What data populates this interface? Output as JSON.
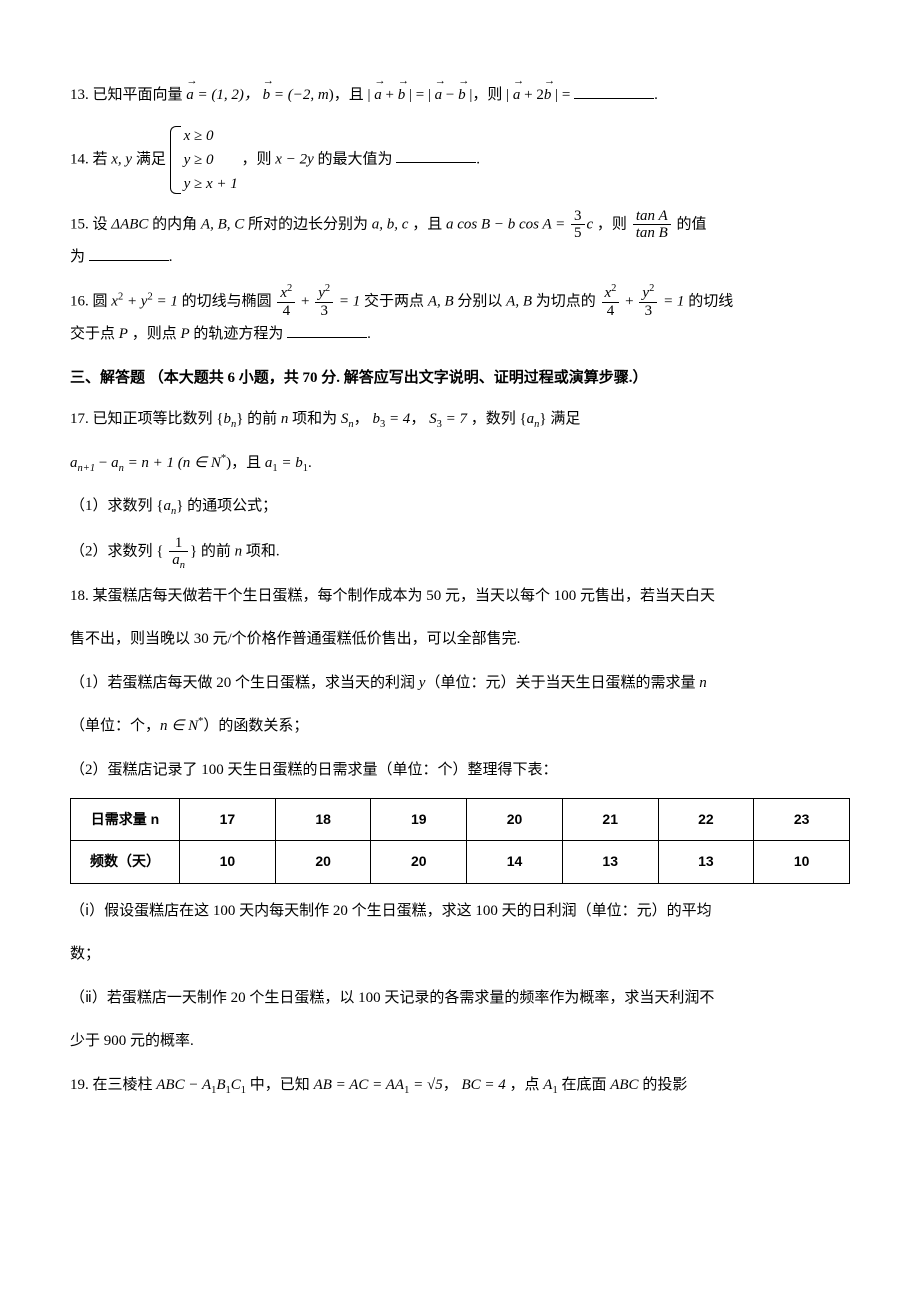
{
  "q13": {
    "num": "13.",
    "prefix": "已知平面向量",
    "a_eq": " = (1, 2)，",
    "b_eq": " = (−2, ",
    "m": "m",
    "b_eq2": ")，且 | ",
    "plus": " + ",
    "mid": " | = | ",
    "minus": " − ",
    "mid2": " |，则 | ",
    "plus2": " + 2",
    "end": " | = "
  },
  "q14": {
    "num": "14.",
    "prefix": "若 ",
    "vars": "x, y",
    "satisfy": " 满足 ",
    "row1": "x ≥ 0",
    "row2": "y ≥ 0",
    "row3": "y ≥ x + 1",
    "then": "，则 ",
    "expr": "x − 2y",
    "end": " 的最大值为"
  },
  "q15": {
    "num": "15.",
    "prefix": "设 ",
    "tri": "ΔABC",
    "mid1": " 的内角 ",
    "angles": "A, B, C",
    "mid2": " 所对的边长分别为 ",
    "sides": "a, b, c",
    "mid3": "，且 ",
    "eq_lhs": "a cos B − b cos A = ",
    "frac_num": "3",
    "frac_den": "5",
    "c": "c",
    "then": "，则 ",
    "tanA": "tan A",
    "tanB": "tan B",
    "end": " 的值",
    "line2": "为"
  },
  "q16": {
    "num": "16.",
    "prefix": "圆 ",
    "circle": "x",
    "sq": "2",
    "plus": " + y",
    "eq1": " = 1",
    "mid1": " 的切线与椭圆 ",
    "x2": "x",
    "four": "4",
    "y2": "y",
    "three": "3",
    "eq1b": " = 1",
    "mid2": " 交于两点 ",
    "AB": "A, B",
    "mid3": " 分别以 ",
    "mid4": " 为切点的 ",
    "eq1c": " = 1",
    "end1": " 的切线",
    "line2a": "交于点 ",
    "P": "P",
    "line2b": "，则点 ",
    "line2c": " 的轨迹方程为"
  },
  "section3": {
    "title": "三、解答题 （本大题共 6 小题，共 70 分. 解答应写出文字说明、证明过程或演算步骤.）"
  },
  "q17": {
    "num": "17.",
    "line1a": "已知正项等比数列 {",
    "bn": "b",
    "n": "n",
    "line1b": "} 的前 ",
    "nvar": "n",
    "line1c": " 项和为 ",
    "Sn": "S",
    "line1d": "，",
    "b3": "b",
    "three": "3",
    "eq4": " = 4",
    "comma": "，",
    "S3": "S",
    "eq7": " = 7",
    "line1e": "，数列 {",
    "an": "a",
    "line1f": "} 满足",
    "line2a": "a",
    "np1": "n+1",
    "minus": " − ",
    "eqnp1": " = n + 1 (n ∈ N",
    "star": "*",
    "close": ")",
    "and": "，且 ",
    "a1": "a",
    "one": "1",
    "eqb1": " = b",
    "period": ".",
    "part1": "（1）求数列 {",
    "part1b": "} 的通项公式；",
    "part2": "（2）求数列 {",
    "frac1": "1",
    "part2b": "} 的前 ",
    "part2c": " 项和."
  },
  "q18": {
    "num": "18.",
    "line1": "某蛋糕店每天做若干个生日蛋糕，每个制作成本为 50 元，当天以每个 100 元售出，若当天白天",
    "line2": "售不出，则当晚以 30 元/个价格作普通蛋糕低价售出，可以全部售完.",
    "part1a": "（1）若蛋糕店每天做 20 个生日蛋糕，求当天的利润 ",
    "y": "y",
    "part1b": "（单位：元）关于当天生日蛋糕的需求量 ",
    "nv": "n",
    "part1c": "（单位：个，",
    "nin": "n ∈ N",
    "star": "*",
    "part1d": "）的函数关系；",
    "part2": "（2）蛋糕店记录了 100 天生日蛋糕的日需求量（单位：个）整理得下表："
  },
  "table": {
    "headers": [
      "日需求量 n",
      "17",
      "18",
      "19",
      "20",
      "21",
      "22",
      "23"
    ],
    "row_label": "频数（天）",
    "row_data": [
      "10",
      "20",
      "20",
      "14",
      "13",
      "13",
      "10"
    ],
    "border_color": "#000000",
    "header_font": "SimHei"
  },
  "q18b": {
    "part_i": "（ⅰ）假设蛋糕店在这 100 天内每天制作 20 个生日蛋糕，求这 100 天的日利润（单位：元）的平均",
    "part_i2": "数；",
    "part_ii": "（ⅱ）若蛋糕店一天制作 20 个生日蛋糕，以 100 天记录的各需求量的频率作为概率，求当天利润不",
    "part_ii2": "少于 900 元的概率."
  },
  "q19": {
    "num": "19.",
    "line1a": "在三棱柱 ",
    "prism": "ABC − A",
    "one": "1",
    "B1": "B",
    "C1": "C",
    "line1b": " 中，已知 ",
    "ABeq": "AB = AC = AA",
    "eq_sqrt5": " = √5",
    "comma": "，",
    "BC": "BC = 4",
    "line1c": "，点 ",
    "A1": "A",
    "line1d": " 在底面 ",
    "ABC": "ABC",
    "line1e": " 的投影"
  }
}
